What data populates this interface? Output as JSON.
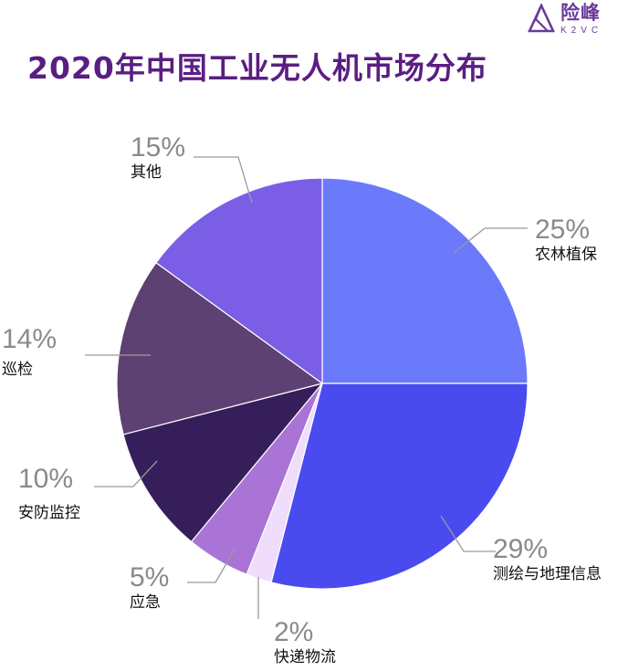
{
  "logo": {
    "cn": "险峰",
    "en": "K2VC"
  },
  "title": "2020年中国工业无人机市场分布",
  "colors": {
    "title": "#5a1e82",
    "label_pct": "#8a8a8a"
  },
  "labels": {
    "s0": {
      "pct": "25%",
      "name": "农林植保"
    },
    "s1": {
      "pct": "29%",
      "name": "测绘与地理信息"
    },
    "s2": {
      "pct": "2%",
      "name": "快递物流"
    },
    "s3": {
      "pct": "5%",
      "name": "应急"
    },
    "s4": {
      "pct": "10%",
      "name": "安防监控"
    },
    "s5": {
      "pct": "14%",
      "name": "巡检"
    },
    "s6": {
      "pct": "15%",
      "name": "其他"
    }
  },
  "chart_data": {
    "type": "pie",
    "title": "2020年中国工业无人机市场分布",
    "categories": [
      "农林植保",
      "测绘与地理信息",
      "快递物流",
      "应急",
      "安防监控",
      "巡检",
      "其他"
    ],
    "values": [
      25,
      29,
      2,
      5,
      10,
      14,
      15
    ],
    "unit": "%",
    "colors": [
      "#6b79fb",
      "#4a4bee",
      "#f0dcfb",
      "#a974d6",
      "#361e5a",
      "#5e4173",
      "#7b5ee6"
    ],
    "start_angle": "12 o'clock, clockwise",
    "legend": "none (leader-line labels)"
  }
}
